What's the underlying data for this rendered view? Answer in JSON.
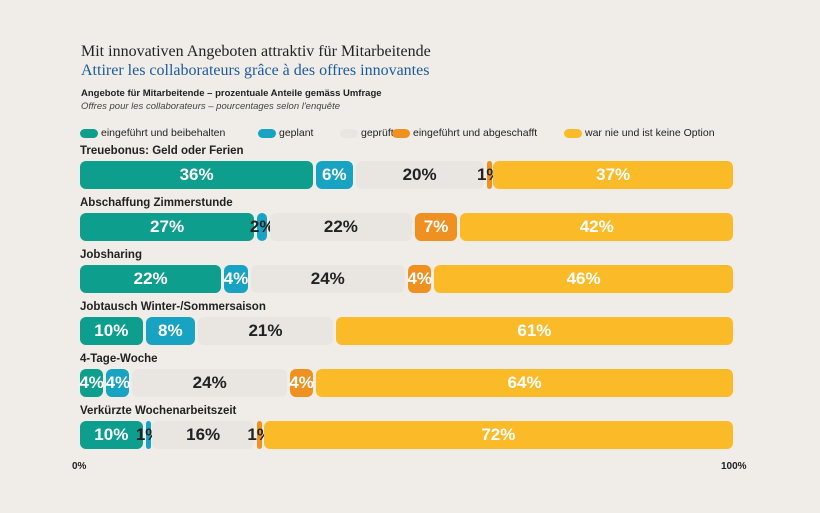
{
  "title_de": "Mit innovativen Angeboten attraktiv für Mitarbeitende",
  "title_fr": "Attirer les collaborateurs grâce à des offres innovantes",
  "subtitle_de": "Angebote für Mitarbeitende – prozentuale Anteile gemäss Umfrage",
  "subtitle_fr": "Offres pour les collaborateurs – pourcentages selon l'enquête",
  "chart_data": {
    "type": "bar",
    "orientation": "horizontal-stacked-100",
    "legend_position": "top",
    "xlim": [
      0,
      100
    ],
    "tick_labels": [
      "0%",
      "100%"
    ],
    "categories": [
      "Treuebonus: Geld oder Ferien",
      "Abschaffung Zimmerstunde",
      "Jobsharing",
      "Jobtausch Winter-/Sommersaison",
      "4-Tage-Woche",
      "Verkürzte Wochenarbeitszeit"
    ],
    "series": [
      {
        "name": "eingeführt und beibehalten",
        "color": "#0e9e8e",
        "values": [
          36,
          27,
          22,
          10,
          4,
          10
        ]
      },
      {
        "name": "geplant",
        "color": "#17a3c1",
        "values": [
          6,
          2,
          4,
          8,
          4,
          1
        ]
      },
      {
        "name": "geprüft",
        "color": "#e9e6e1",
        "values": [
          20,
          22,
          24,
          21,
          24,
          16
        ]
      },
      {
        "name": "eingeführt und  abgeschafft",
        "color": "#ef9121",
        "values": [
          1,
          7,
          4,
          0,
          4,
          1
        ]
      },
      {
        "name": "war nie und ist keine Option",
        "color": "#fbbb29",
        "values": [
          37,
          42,
          46,
          61,
          64,
          72
        ]
      }
    ]
  }
}
